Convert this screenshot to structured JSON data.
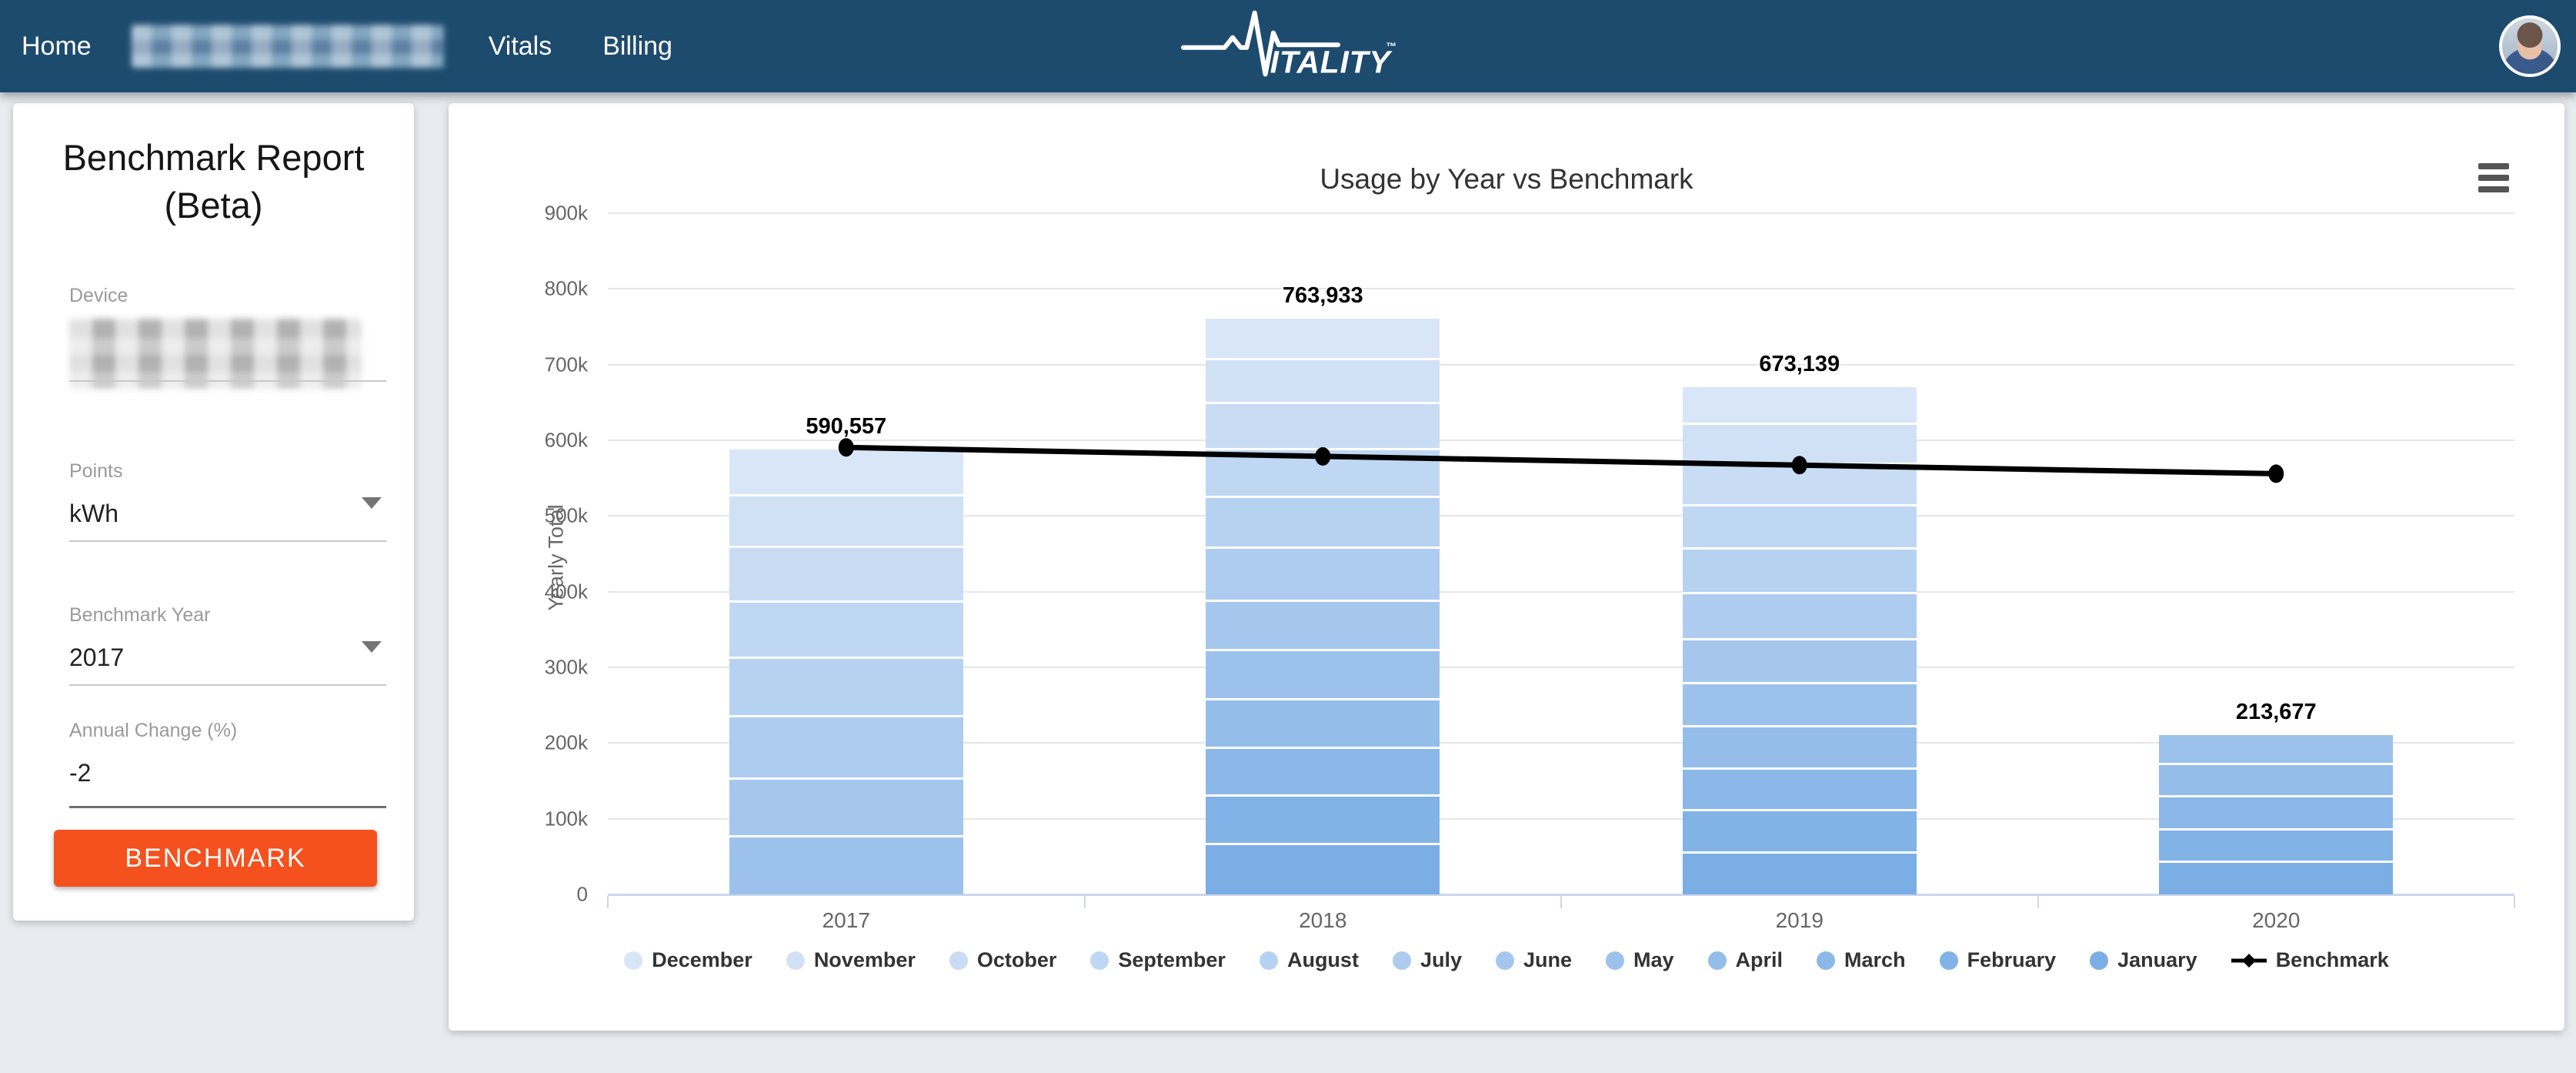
{
  "nav": {
    "bg_color": "#1d4b6e",
    "items": [
      {
        "label": "Home"
      },
      {
        "label": "",
        "redacted": true
      },
      {
        "label": "Vitals"
      },
      {
        "label": "Billing"
      }
    ],
    "logo": {
      "text": "ITALITY",
      "tm": "™"
    }
  },
  "sidebar": {
    "title": "Benchmark Report (Beta)",
    "fields": {
      "device": {
        "label": "Device",
        "value": "",
        "redacted": true
      },
      "points": {
        "label": "Points",
        "value": "kWh"
      },
      "benchmark_year": {
        "label": "Benchmark Year",
        "value": "2017"
      },
      "annual_change": {
        "label": "Annual Change (%)",
        "value": "-2"
      }
    },
    "button_label": "BENCHMARK",
    "button_color": "#f4511e"
  },
  "chart_data": {
    "type": "bar",
    "subtype": "stacked-column-with-benchmark-line",
    "title": "Usage by Year vs Benchmark",
    "xlabel": "",
    "ylabel": "Yearly Total",
    "ylim": [
      0,
      900000
    ],
    "ytick_step": 100000,
    "ytick_labels": [
      "0",
      "100k",
      "200k",
      "300k",
      "400k",
      "500k",
      "600k",
      "700k",
      "800k",
      "900k"
    ],
    "grid": "horizontal",
    "legend_position": "bottom",
    "categories": [
      "2017",
      "2018",
      "2019",
      "2020"
    ],
    "totals": [
      590557,
      763933,
      673139,
      213677
    ],
    "total_labels": [
      "590,557",
      "763,933",
      "673,139",
      "213,677"
    ],
    "series": [
      {
        "name": "December",
        "color": "#d9e6f8",
        "values": [
          62000,
          55000,
          50000,
          null
        ]
      },
      {
        "name": "November",
        "color": "#d0e1f6",
        "values": [
          68000,
          58000,
          53000,
          null
        ]
      },
      {
        "name": "October",
        "color": "#c8dcf4",
        "values": [
          72000,
          61000,
          55000,
          null
        ]
      },
      {
        "name": "September",
        "color": "#bfd7f3",
        "values": [
          74000,
          63000,
          56000,
          null
        ]
      },
      {
        "name": "August",
        "color": "#b6d2f1",
        "values": [
          78000,
          67000,
          59000,
          null
        ]
      },
      {
        "name": "July",
        "color": "#aeccef",
        "values": [
          82000,
          70000,
          61000,
          null
        ]
      },
      {
        "name": "June",
        "color": "#a5c7ed",
        "values": [
          76000,
          66000,
          58000,
          null
        ]
      },
      {
        "name": "May",
        "color": "#9cc2ec",
        "values": [
          78557,
          65000,
          57000,
          40000
        ]
      },
      {
        "name": "April",
        "color": "#94bdea",
        "values": [
          null,
          64000,
          56000,
          42000
        ]
      },
      {
        "name": "March",
        "color": "#8bb8e8",
        "values": [
          null,
          63000,
          55000,
          44000
        ]
      },
      {
        "name": "February",
        "color": "#82b3e6",
        "values": [
          null,
          64000,
          56000,
          43000
        ]
      },
      {
        "name": "January",
        "color": "#7aaee5",
        "values": [
          null,
          67933,
          57139,
          44677
        ]
      }
    ],
    "benchmark": {
      "name": "Benchmark",
      "color": "#000000",
      "values": [
        590557,
        578746,
        567171,
        555827
      ],
      "first_point_label": "590,557"
    }
  }
}
